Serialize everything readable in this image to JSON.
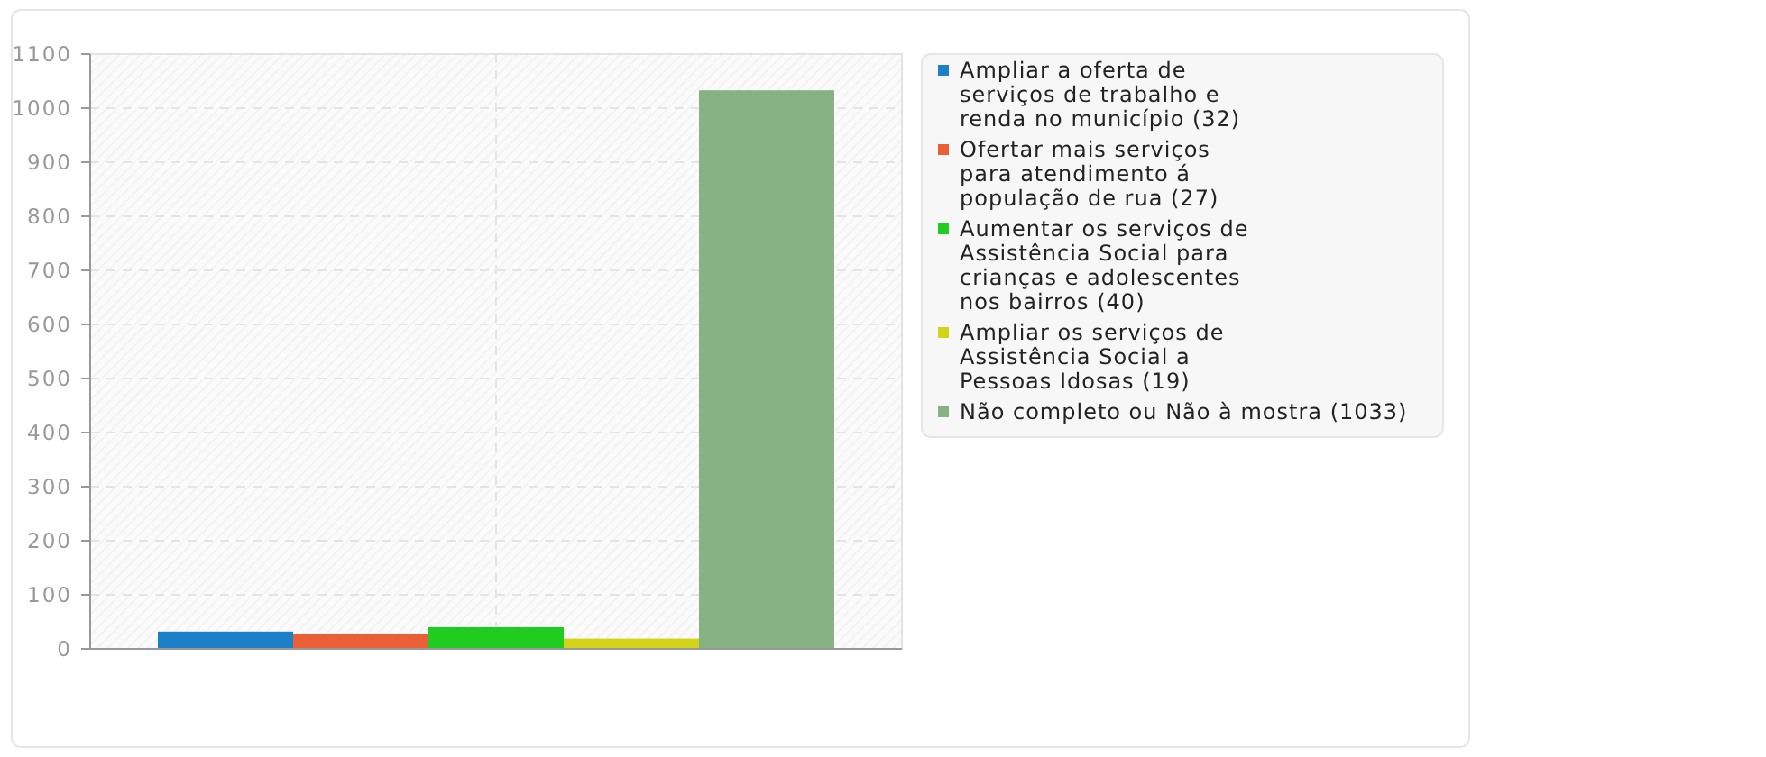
{
  "chart_data": {
    "type": "bar",
    "categories": [
      null
    ],
    "series": [
      {
        "name": "Ampliar a oferta de\nserviços de trabalho e\nrenda no município (32)",
        "color": "#1a80c8",
        "values": [
          32
        ]
      },
      {
        "name": "Ofertar mais serviços\npara atendimento á\npopulação de rua (27)",
        "color": "#ea5f35",
        "values": [
          27
        ]
      },
      {
        "name": "Aumentar os serviços de\nAssistência Social para\ncrianças e adolescentes\nnos bairros (40)",
        "color": "#20cc20",
        "values": [
          40
        ]
      },
      {
        "name": "Ampliar os serviços de\nAssistência Social a\nPessoas Idosas (19)",
        "color": "#d3d31a",
        "values": [
          19
        ]
      },
      {
        "name": "Não completo ou Não à mostra (1033)",
        "color": "#87b284",
        "values": [
          1033
        ]
      }
    ],
    "ylim": [
      0,
      1100
    ],
    "yticks": [
      0,
      100,
      200,
      300,
      400,
      500,
      600,
      700,
      800,
      900,
      1000,
      1100
    ],
    "grid": true,
    "legend": "right"
  }
}
